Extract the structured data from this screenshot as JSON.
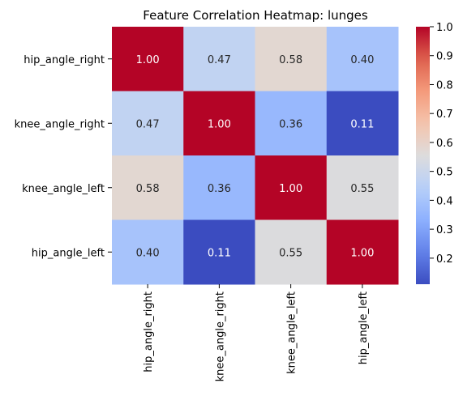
{
  "chart_data": {
    "type": "heatmap",
    "title": "Feature Correlation Heatmap: lunges",
    "xlabel": "",
    "ylabel": "",
    "row_labels": [
      "hip_angle_right",
      "knee_angle_right",
      "knee_angle_left",
      "hip_angle_left"
    ],
    "col_labels": [
      "hip_angle_right",
      "knee_angle_right",
      "knee_angle_left",
      "hip_angle_left"
    ],
    "values": [
      [
        1.0,
        0.47,
        0.58,
        0.4
      ],
      [
        0.47,
        1.0,
        0.36,
        0.11
      ],
      [
        0.58,
        0.36,
        1.0,
        0.55
      ],
      [
        0.4,
        0.11,
        0.55,
        1.0
      ]
    ],
    "value_format": "0.00",
    "colormap": "coolwarm",
    "colorbar": {
      "vmin": 0.11,
      "vmax": 1.0,
      "ticks": [
        "0.2",
        "0.3",
        "0.4",
        "0.5",
        "0.6",
        "0.7",
        "0.8",
        "0.9",
        "1.0"
      ],
      "tick_values": [
        0.2,
        0.3,
        0.4,
        0.5,
        0.6,
        0.7,
        0.8,
        0.9,
        1.0
      ],
      "placement": "right"
    }
  }
}
